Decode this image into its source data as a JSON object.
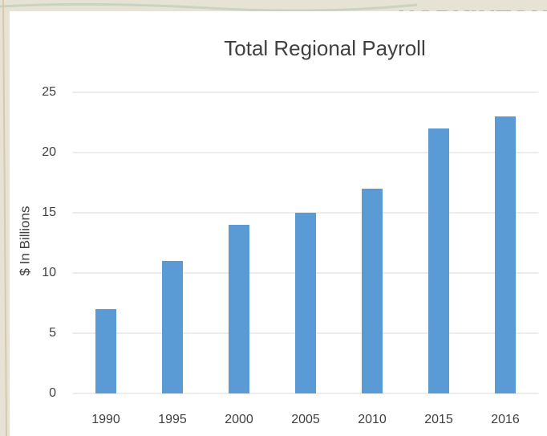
{
  "background": {
    "label": "HOPKINTON"
  },
  "chart_data": {
    "type": "bar",
    "title": "Total Regional Payroll",
    "y_label": "$ In Billions",
    "categories": [
      "1990",
      "1995",
      "2000",
      "2005",
      "2010",
      "2015",
      "2016"
    ],
    "values": [
      7,
      11,
      14,
      15,
      17,
      22,
      23
    ],
    "color": "#5b9bd5",
    "ylim": [
      0,
      25
    ],
    "yticks": [
      0,
      5,
      10,
      15,
      20,
      25
    ],
    "grid": true
  }
}
